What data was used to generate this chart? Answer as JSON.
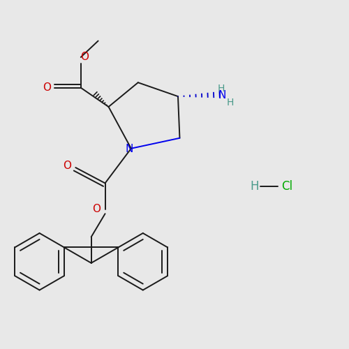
{
  "bg_color": "#e8e8e8",
  "bond_color": "#1a1a1a",
  "N_color": "#0000ee",
  "O_color": "#cc0000",
  "NH_color": "#4a9a8a",
  "Cl_color": "#00aa00",
  "lw": 1.4,
  "figsize": [
    5.0,
    5.0
  ],
  "dpi": 100,
  "xlim": [
    0,
    10
  ],
  "ylim": [
    0,
    10
  ]
}
